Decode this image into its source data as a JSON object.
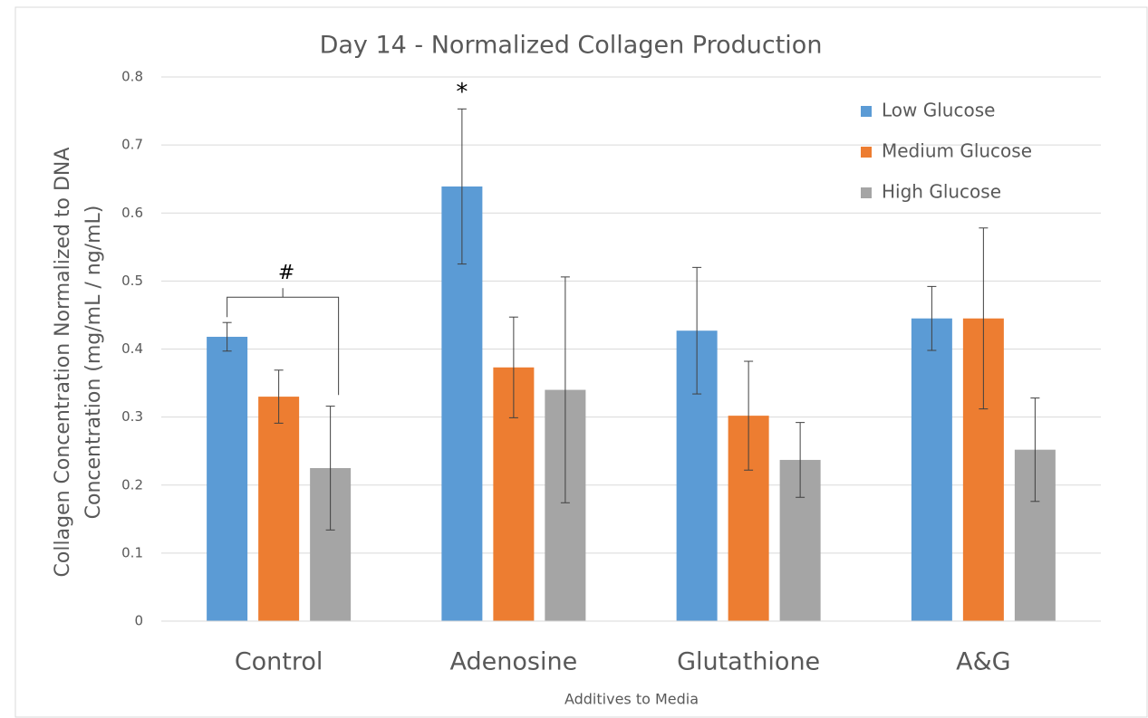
{
  "chart_data": {
    "type": "bar",
    "title": "Day 14 - Normalized Collagen Production",
    "xlabel": "Additives to Media",
    "ylabel": [
      "Collagen Concentration Normalized to DNA",
      "Concentration (mg/mL / ng/mL)"
    ],
    "categories": [
      "Control",
      "Adenosine",
      "Glutathione",
      "A&G"
    ],
    "series": [
      {
        "name": "Low Glucose",
        "color": "#5b9bd5",
        "values": [
          0.418,
          0.639,
          0.427,
          0.445
        ],
        "errors": [
          0.021,
          0.114,
          0.093,
          0.047
        ]
      },
      {
        "name": "Medium Glucose",
        "color": "#ed7d31",
        "values": [
          0.33,
          0.373,
          0.302,
          0.445
        ],
        "errors": [
          0.039,
          0.074,
          0.08,
          0.133
        ]
      },
      {
        "name": "High Glucose",
        "color": "#a5a5a5",
        "values": [
          0.225,
          0.34,
          0.237,
          0.252
        ],
        "errors": [
          0.091,
          0.166,
          0.055,
          0.076
        ]
      }
    ],
    "ylim": [
      0,
      0.8
    ],
    "yticks": [
      0,
      0.1,
      0.2,
      0.3,
      0.4,
      0.5,
      0.6,
      0.7,
      0.8
    ],
    "grid": true,
    "legend": "upper right",
    "annotations": [
      {
        "text": "*"
      },
      {
        "text": "#"
      }
    ]
  }
}
